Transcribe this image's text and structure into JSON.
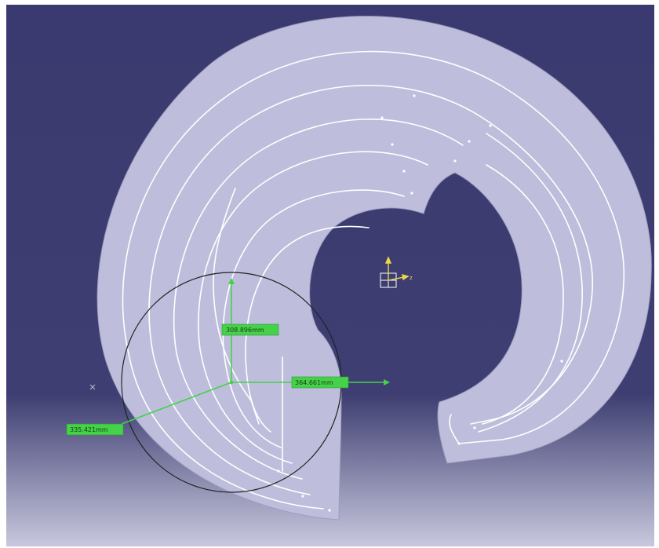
{
  "viewport": {
    "background_top": "#3a3a70",
    "background_bottom": "#c8c8de"
  },
  "part": {
    "fill": "#bebedc",
    "groove_color": "#ffffff",
    "edge_color": "#9d9dc0"
  },
  "compass": {
    "color": "#e8d84a",
    "axis_label": "z"
  },
  "measure": {
    "color": "#45d14a",
    "circle_color": "#222222",
    "labels": {
      "vertical": "308.896mm",
      "horizontal": "364.661mm",
      "diagonal": "335.421mm"
    }
  }
}
